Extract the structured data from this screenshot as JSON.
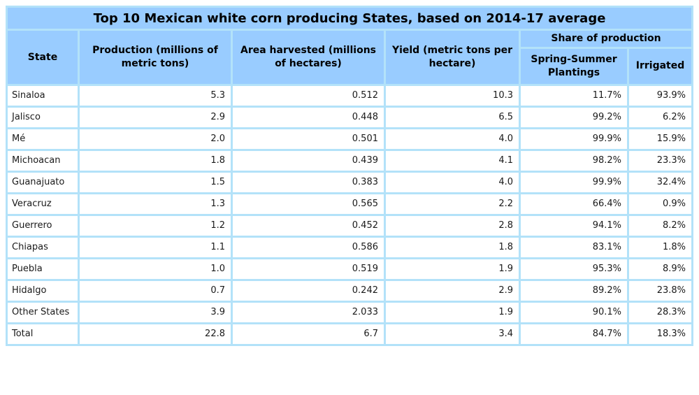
{
  "title": "Top 10 Mexican white corn producing States, based on 2014-17 average",
  "colors": {
    "header_bg": "#99ccff",
    "grid": "#b3e2f9",
    "cell_bg": "#ffffff",
    "text": "#000000"
  },
  "table": {
    "headers": {
      "state": "State",
      "production": "Production (millions of metric tons)",
      "area": "Area harvested (millions of hectares)",
      "yield": "Yield (metric tons per hectare)",
      "share_group": "Share of production",
      "spring_summer": "Spring-Summer Plantings",
      "irrigated": "Irrigated"
    },
    "rows": [
      {
        "state": "Sinaloa",
        "production": "5.3",
        "area": "0.512",
        "yield": "10.3",
        "spring_summer": "11.7%",
        "irrigated": "93.9%"
      },
      {
        "state": "Jalisco",
        "production": "2.9",
        "area": "0.448",
        "yield": "6.5",
        "spring_summer": "99.2%",
        "irrigated": "6.2%"
      },
      {
        "state": "Mé",
        "production": "2.0",
        "area": "0.501",
        "yield": "4.0",
        "spring_summer": "99.9%",
        "irrigated": "15.9%"
      },
      {
        "state": "Michoacan",
        "production": "1.8",
        "area": "0.439",
        "yield": "4.1",
        "spring_summer": "98.2%",
        "irrigated": "23.3%"
      },
      {
        "state": "Guanajuato",
        "production": "1.5",
        "area": "0.383",
        "yield": "4.0",
        "spring_summer": "99.9%",
        "irrigated": "32.4%"
      },
      {
        "state": "Veracruz",
        "production": "1.3",
        "area": "0.565",
        "yield": "2.2",
        "spring_summer": "66.4%",
        "irrigated": "0.9%"
      },
      {
        "state": "Guerrero",
        "production": "1.2",
        "area": "0.452",
        "yield": "2.8",
        "spring_summer": "94.1%",
        "irrigated": "8.2%"
      },
      {
        "state": "Chiapas",
        "production": "1.1",
        "area": "0.586",
        "yield": "1.8",
        "spring_summer": "83.1%",
        "irrigated": "1.8%"
      },
      {
        "state": "Puebla",
        "production": "1.0",
        "area": "0.519",
        "yield": "1.9",
        "spring_summer": "95.3%",
        "irrigated": "8.9%"
      },
      {
        "state": "Hidalgo",
        "production": "0.7",
        "area": "0.242",
        "yield": "2.9",
        "spring_summer": "89.2%",
        "irrigated": "23.8%"
      },
      {
        "state": "Other States",
        "production": "3.9",
        "area": "2.033",
        "yield": "1.9",
        "spring_summer": "90.1%",
        "irrigated": "28.3%"
      },
      {
        "state": "Total",
        "production": "22.8",
        "area": "6.7",
        "yield": "3.4",
        "spring_summer": "84.7%",
        "irrigated": "18.3%"
      }
    ]
  },
  "chart_data": {
    "type": "table",
    "title": "Top 10 Mexican white corn producing States, based on 2014-17 average",
    "columns": [
      "State",
      "Production (millions of metric tons)",
      "Area harvested (millions of hectares)",
      "Yield (metric tons per hectare)",
      "Share of production - Spring-Summer Plantings (%)",
      "Share of production - Irrigated (%)"
    ],
    "rows": [
      [
        "Sinaloa",
        5.3,
        0.512,
        10.3,
        11.7,
        93.9
      ],
      [
        "Jalisco",
        2.9,
        0.448,
        6.5,
        99.2,
        6.2
      ],
      [
        "Mé",
        2.0,
        0.501,
        4.0,
        99.9,
        15.9
      ],
      [
        "Michoacan",
        1.8,
        0.439,
        4.1,
        98.2,
        23.3
      ],
      [
        "Guanajuato",
        1.5,
        0.383,
        4.0,
        99.9,
        32.4
      ],
      [
        "Veracruz",
        1.3,
        0.565,
        2.2,
        66.4,
        0.9
      ],
      [
        "Guerrero",
        1.2,
        0.452,
        2.8,
        94.1,
        8.2
      ],
      [
        "Chiapas",
        1.1,
        0.586,
        1.8,
        83.1,
        1.8
      ],
      [
        "Puebla",
        1.0,
        0.519,
        1.9,
        95.3,
        8.9
      ],
      [
        "Hidalgo",
        0.7,
        0.242,
        2.9,
        89.2,
        23.8
      ],
      [
        "Other States",
        3.9,
        2.033,
        1.9,
        90.1,
        28.3
      ],
      [
        "Total",
        22.8,
        6.7,
        3.4,
        84.7,
        18.3
      ]
    ]
  }
}
